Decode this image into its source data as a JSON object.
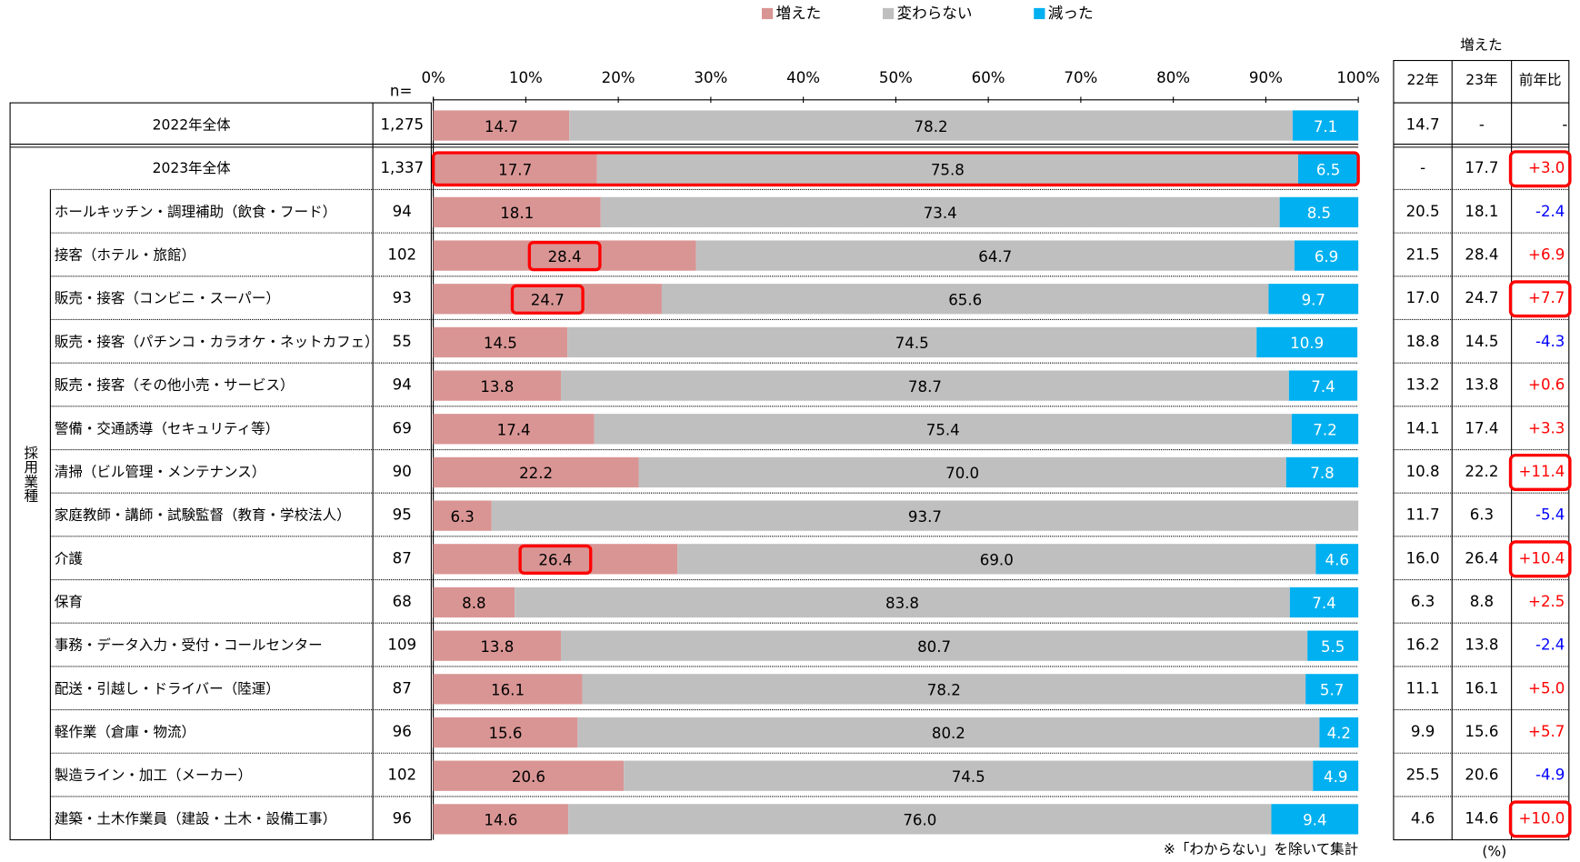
{
  "chart_data": {
    "type": "stacked_bar",
    "orientation": "horizontal",
    "n_header": "n=",
    "group_label": "採用業種",
    "categories": [
      "2022年全体",
      "2023年全体",
      "ホールキッチン・調理補助（飲食・フード）",
      "接客（ホテル・旅館）",
      "販売・接客（コンビニ・スーパー）",
      "販売・接客（パチンコ・カラオケ・ネットカフェ）",
      "販売・接客（その他小売・サービス）",
      "警備・交通誘導（セキュリティ等）",
      "清掃（ビル管理・メンテナンス）",
      "家庭教師・講師・試験監督（教育・学校法人）",
      "介護",
      "保育",
      "事務・データ入力・受付・コールセンター",
      "配送・引越し・ドライバー（陸運）",
      "軽作業（倉庫・物流）",
      "製造ライン・加工（メーカー）",
      "建築・土木作業員（建設・土木・設備工事）"
    ],
    "n": [
      "1,275",
      "1,337",
      "94",
      "102",
      "93",
      "55",
      "94",
      "69",
      "90",
      "95",
      "87",
      "68",
      "109",
      "87",
      "96",
      "102",
      "96"
    ],
    "series": [
      {
        "name": "増えた",
        "color": "#d99594",
        "label_color": "#000000",
        "values": [
          14.7,
          17.7,
          18.1,
          28.4,
          24.7,
          14.5,
          13.8,
          17.4,
          22.2,
          6.3,
          26.4,
          8.8,
          13.8,
          16.1,
          15.6,
          20.6,
          14.6
        ]
      },
      {
        "name": "変わらない",
        "color": "#bfbfbf",
        "label_color": "#000000",
        "values": [
          78.2,
          75.8,
          73.4,
          64.7,
          65.6,
          74.5,
          78.7,
          75.4,
          70,
          93.7,
          69,
          83.8,
          80.7,
          78.2,
          80.2,
          74.5,
          76
        ],
        "value_labels": [
          "78.2",
          "75.8",
          "73.4",
          "64.7",
          "65.6",
          "74.5",
          "78.7",
          "75.4",
          "70.0",
          "93.7",
          "69.0",
          "83.8",
          "80.7",
          "78.2",
          "80.2",
          "74.5",
          "76.0"
        ]
      },
      {
        "name": "減った",
        "color": "#00b0f0",
        "label_color": "#ffffff",
        "values": [
          7.1,
          6.5,
          8.5,
          6.9,
          9.7,
          10.9,
          7.4,
          7.2,
          7.8,
          null,
          4.6,
          7.4,
          5.5,
          5.7,
          4.2,
          4.9,
          9.4
        ]
      }
    ],
    "xlim": [
      0,
      100
    ],
    "xticks": [
      {
        "value": 0,
        "label": "0%"
      },
      {
        "value": 10,
        "label": "10%"
      },
      {
        "value": 20,
        "label": "20%"
      },
      {
        "value": 30,
        "label": "30%"
      },
      {
        "value": 40,
        "label": "40%"
      },
      {
        "value": 50,
        "label": "50%"
      },
      {
        "value": 60,
        "label": "60%"
      },
      {
        "value": 70,
        "label": "70%"
      },
      {
        "value": 80,
        "label": "80%"
      },
      {
        "value": 90,
        "label": "90%"
      },
      {
        "value": 100,
        "label": "100%"
      }
    ],
    "legend": "top",
    "side_table": {
      "title": "増えた",
      "columns": [
        "22年",
        "23年",
        "前年比"
      ],
      "rows": [
        [
          "14.7",
          "-",
          "-"
        ],
        [
          "-",
          "17.7",
          "+3.0"
        ],
        [
          "20.5",
          "18.1",
          "-2.4"
        ],
        [
          "21.5",
          "28.4",
          "+6.9"
        ],
        [
          "17.0",
          "24.7",
          "+7.7"
        ],
        [
          "18.8",
          "14.5",
          "-4.3"
        ],
        [
          "13.2",
          "13.8",
          "+0.6"
        ],
        [
          "14.1",
          "17.4",
          "+3.3"
        ],
        [
          "10.8",
          "22.2",
          "+11.4"
        ],
        [
          "11.7",
          "6.3",
          "-5.4"
        ],
        [
          "16.0",
          "26.4",
          "+10.4"
        ],
        [
          "6.3",
          "8.8",
          "+2.5"
        ],
        [
          "16.2",
          "13.8",
          "-2.4"
        ],
        [
          "11.1",
          "16.1",
          "+5.0"
        ],
        [
          "9.9",
          "15.6",
          "+5.7"
        ],
        [
          "25.5",
          "20.6",
          "-4.9"
        ],
        [
          "4.6",
          "14.6",
          "+10.0"
        ]
      ],
      "unit": "(%)"
    },
    "highlight": {
      "color": "#ff0000",
      "rows": [
        1
      ],
      "increase_labels": [
        3,
        4,
        10
      ],
      "change_cells": [
        1,
        4,
        8,
        10,
        16
      ]
    },
    "note": "※「わからない」を除いて集計"
  }
}
